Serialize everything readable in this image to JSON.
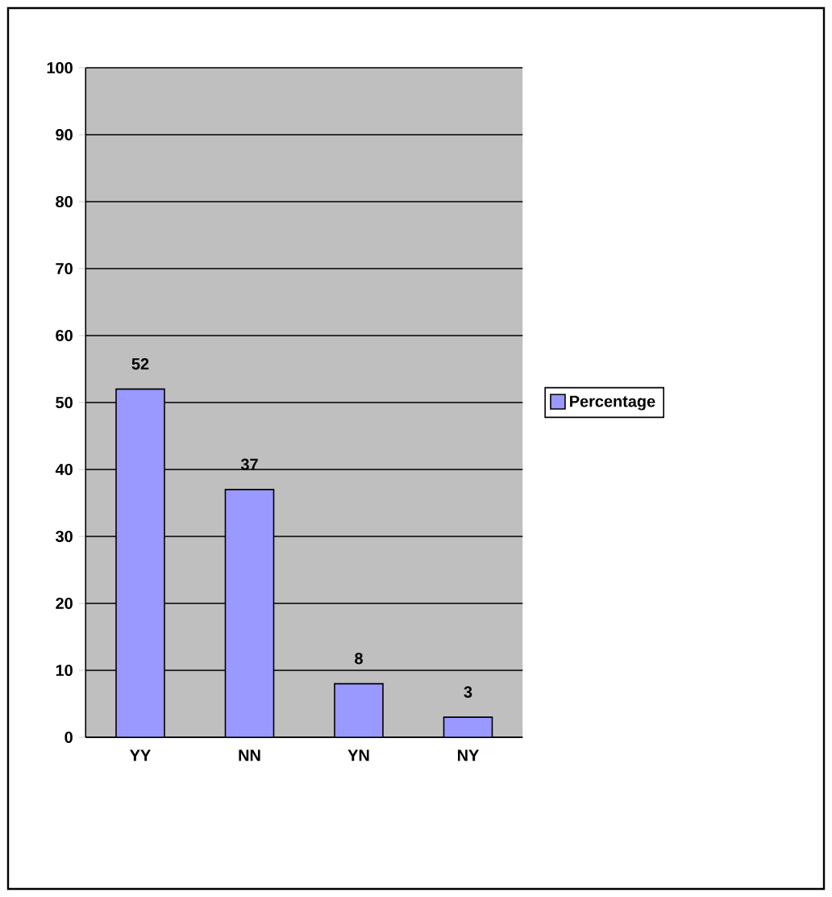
{
  "chart_data": {
    "type": "bar",
    "categories": [
      "YY",
      "NN",
      "YN",
      "NY"
    ],
    "series": [
      {
        "name": "Percentage",
        "color": "#9999ff",
        "values": [
          52,
          37,
          8,
          3
        ]
      }
    ],
    "ylim": [
      0,
      100
    ],
    "yticks": [
      0,
      10,
      20,
      30,
      40,
      50,
      60,
      70,
      80,
      90,
      100
    ],
    "grid": "y",
    "legend": "right",
    "data_labels": true
  }
}
